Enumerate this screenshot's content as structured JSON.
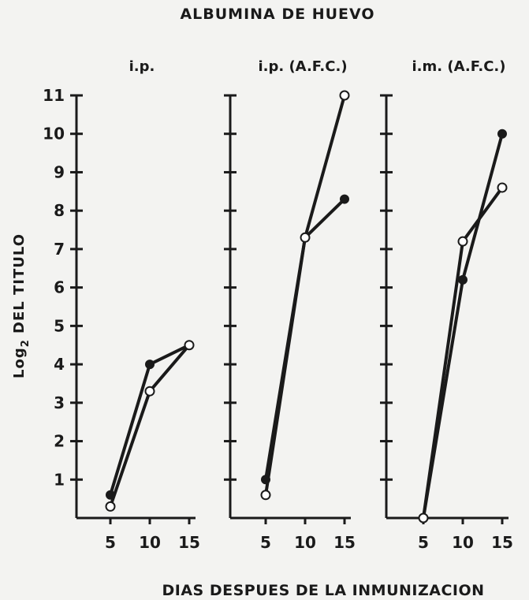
{
  "chart_data": {
    "type": "line",
    "title": "ALBUMINA DE HUEVO",
    "xlabel": "DIAS DESPUES DE LA INMUNIZACION",
    "ylabel": "Log",
    "ylabel_sub": "2",
    "ylabel_rest": " DEL TITULO",
    "ylim": [
      0,
      11
    ],
    "yticks": [
      1,
      2,
      3,
      4,
      5,
      6,
      7,
      8,
      9,
      10,
      11
    ],
    "ytick_labels": [
      "1",
      "2",
      "3",
      "4",
      "5",
      "6",
      "7",
      "8",
      "9",
      "10",
      "11"
    ],
    "x": [
      5,
      10,
      15
    ],
    "xtick_labels": [
      "5",
      "10",
      "15"
    ],
    "legend": "none",
    "grid": false,
    "panels": [
      {
        "title": "i.p.",
        "series": [
          {
            "marker": "filled",
            "values": [
              0.6,
              4.0,
              4.5
            ]
          },
          {
            "marker": "open",
            "values": [
              0.3,
              3.3,
              4.5
            ]
          }
        ]
      },
      {
        "title": "i.p. (A.F.C.)",
        "series": [
          {
            "marker": "filled",
            "values": [
              1.0,
              7.3,
              8.3
            ]
          },
          {
            "marker": "open",
            "values": [
              0.6,
              7.3,
              11.0
            ]
          }
        ]
      },
      {
        "title": "i.m. (A.F.C.)",
        "series": [
          {
            "marker": "filled",
            "values": [
              0.0,
              6.2,
              10.0
            ]
          },
          {
            "marker": "open",
            "values": [
              0.0,
              7.2,
              8.6
            ]
          }
        ]
      }
    ]
  }
}
